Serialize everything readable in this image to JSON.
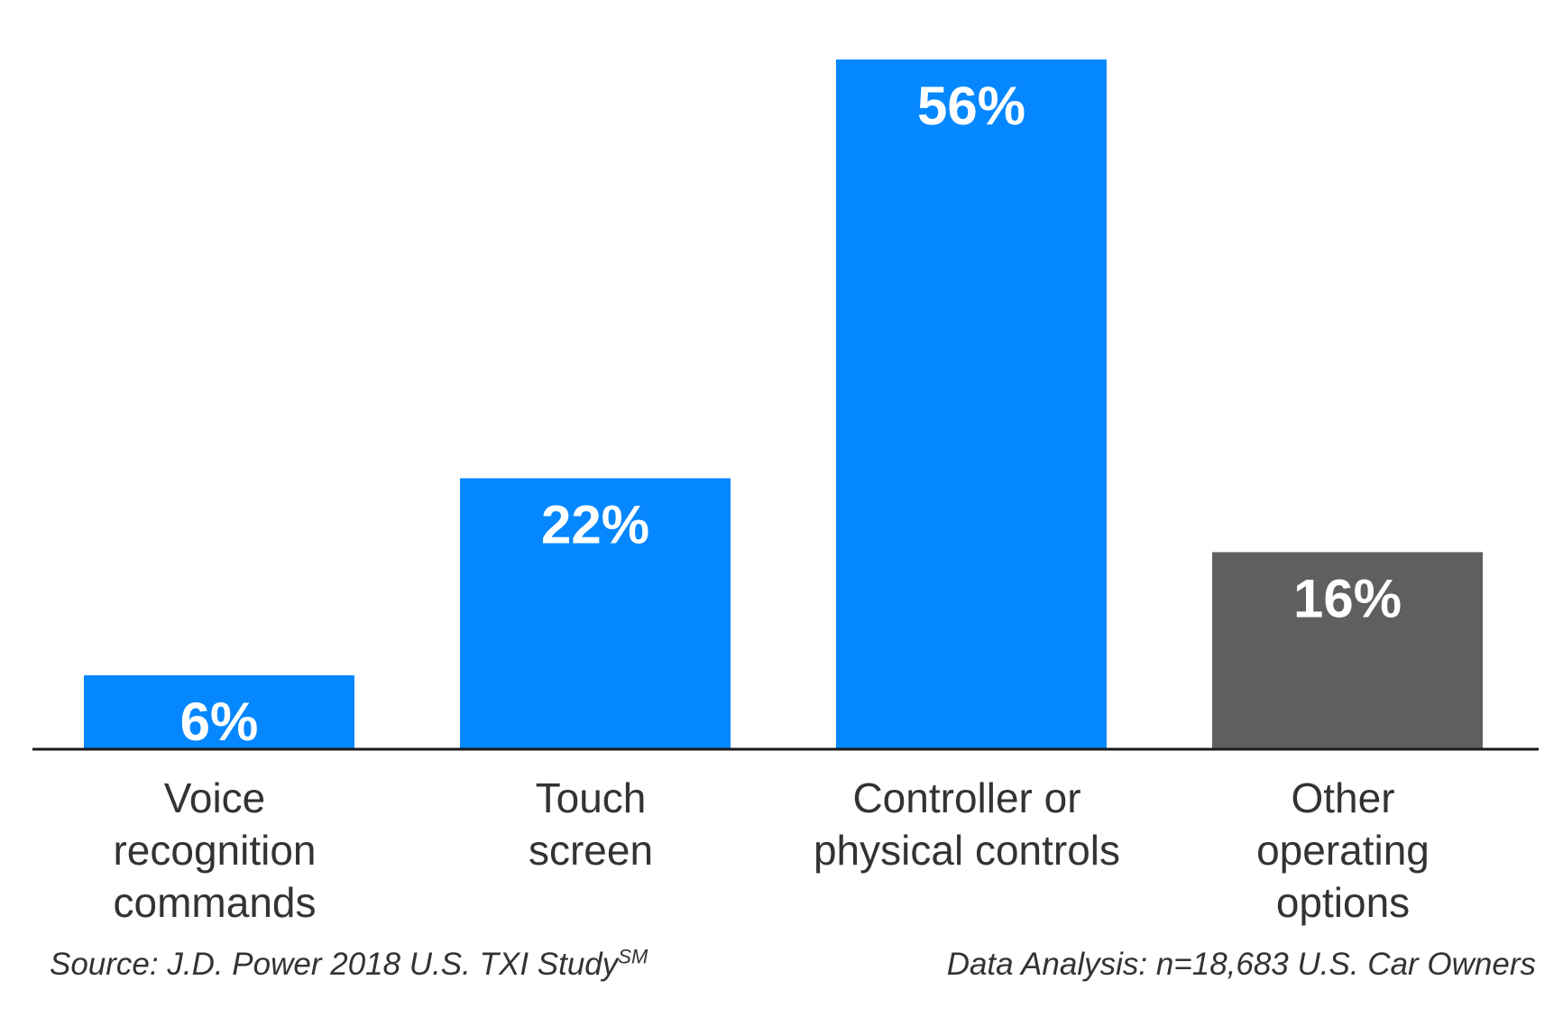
{
  "chart_data": {
    "type": "bar",
    "categories": [
      "Voice recognition commands",
      "Touch screen",
      "Controller or physical controls",
      "Other operating options"
    ],
    "category_lines": [
      [
        "Voice",
        "recognition",
        "commands"
      ],
      [
        "Touch",
        "screen"
      ],
      [
        "Controller or",
        "physical controls"
      ],
      [
        "Other",
        "operating",
        "options"
      ]
    ],
    "values": [
      6,
      22,
      56,
      16
    ],
    "value_labels": [
      "6%",
      "22%",
      "56%",
      "16%"
    ],
    "bar_colors": [
      "#0587FF",
      "#0587FF",
      "#0587FF",
      "#5F5F5F"
    ],
    "value_label_color": "#FFFFFF",
    "baseline_color": "#1A1A1A",
    "ylim": [
      0,
      56
    ],
    "grid": false,
    "legend": "none"
  },
  "footer": {
    "source": "Source: J.D. Power 2018 U.S. TXI Study",
    "source_mark": "SM",
    "analysis": "Data Analysis: n=18,683 U.S. Car Owners"
  }
}
